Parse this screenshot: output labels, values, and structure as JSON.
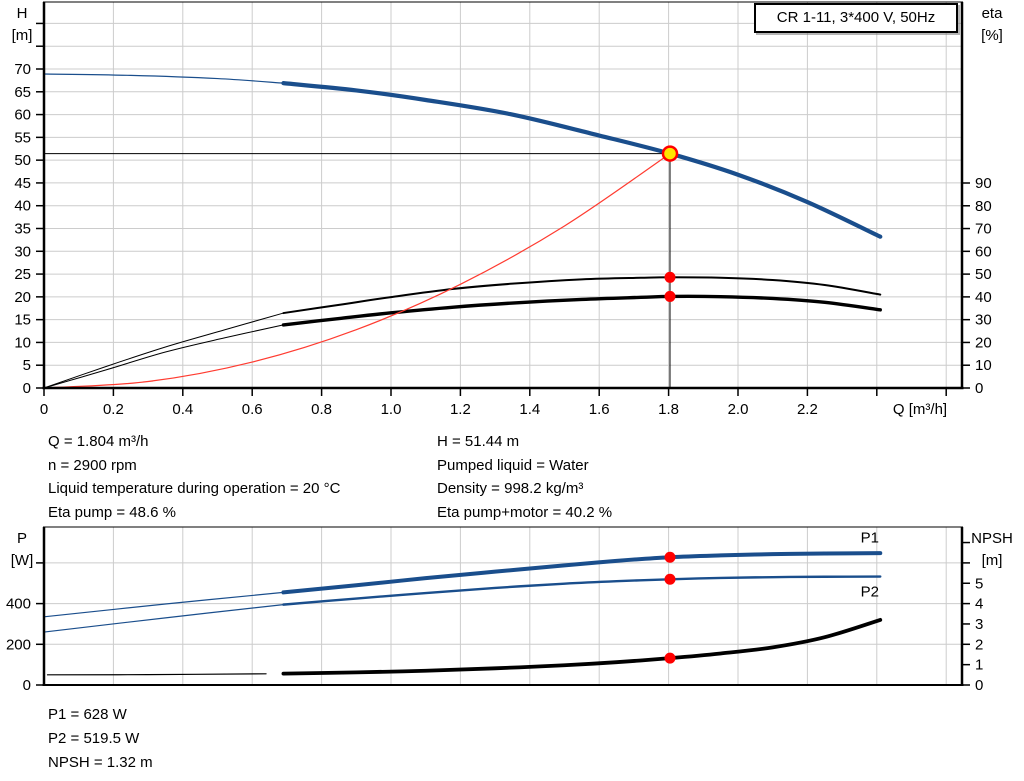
{
  "title_box": "CR 1-11, 3*400 V, 50Hz",
  "colors": {
    "curve_blue": "#1a4e8c",
    "curve_black": "#000000",
    "curve_red": "#ff3b30",
    "marker_red": "#ff0000",
    "duty_fill": "#ffe600",
    "grid": "#cccccc",
    "axis": "#000000"
  },
  "annotations": {
    "mid_left": [
      "Q = 1.804 m³/h",
      "n = 2900 rpm",
      "Liquid temperature during operation = 20 °C",
      "Eta pump = 48.6 %"
    ],
    "mid_right": [
      "H = 51.44 m",
      "Pumped liquid = Water",
      "Density = 998.2 kg/m³",
      "Eta pump+motor = 40.2 %"
    ],
    "bottom": [
      "P1 = 628 W",
      "P2 = 519.5 W",
      "NPSH = 1.32 m"
    ]
  },
  "chart_data": [
    {
      "name": "qh-eta-chart",
      "type": "line",
      "title": "CR 1-11, 3*400 V, 50Hz",
      "x_axis": {
        "label": "Q [m³/h]",
        "min": 0,
        "max": 2.65,
        "ticks": [
          [
            0,
            "0"
          ],
          [
            0.2,
            "0.2"
          ],
          [
            0.4,
            "0.4"
          ],
          [
            0.6,
            "0.6"
          ],
          [
            0.8,
            "0.8"
          ],
          [
            1.0,
            "1.0"
          ],
          [
            1.2,
            "1.2"
          ],
          [
            1.4,
            "1.4"
          ],
          [
            1.6,
            "1.6"
          ],
          [
            1.8,
            "1.8"
          ],
          [
            2.0,
            "2.0"
          ],
          [
            2.2,
            "2.2"
          ],
          [
            2.4,
            null
          ],
          [
            2.6,
            null
          ]
        ]
      },
      "y_left": {
        "title": [
          "H",
          "[m]"
        ],
        "min": 0,
        "max": 84.5,
        "ticks": [
          [
            0,
            "0"
          ],
          [
            5,
            "5"
          ],
          [
            10,
            "10"
          ],
          [
            15,
            "15"
          ],
          [
            20,
            "20"
          ],
          [
            25,
            "25"
          ],
          [
            30,
            "30"
          ],
          [
            35,
            "35"
          ],
          [
            40,
            "40"
          ],
          [
            45,
            "45"
          ],
          [
            50,
            "50"
          ],
          [
            55,
            "55"
          ],
          [
            60,
            "60"
          ],
          [
            65,
            "65"
          ],
          [
            70,
            "70"
          ],
          [
            75,
            null
          ],
          [
            80,
            null
          ]
        ]
      },
      "y_right": {
        "title": [
          "eta",
          "[%]"
        ],
        "min": 0,
        "max": 90,
        "ticks": [
          [
            0,
            "0"
          ],
          [
            10,
            "10"
          ],
          [
            20,
            "20"
          ],
          [
            30,
            "30"
          ],
          [
            40,
            "40"
          ],
          [
            50,
            "50"
          ],
          [
            60,
            "60"
          ],
          [
            70,
            "70"
          ],
          [
            80,
            "80"
          ],
          [
            90,
            "90"
          ]
        ]
      },
      "ref_lines": [
        {
          "type": "h",
          "name": "duty-head-line",
          "v": 51.44,
          "q1": 0,
          "q2": 1.804
        },
        {
          "type": "v",
          "name": "duty-flow-line",
          "q": 1.804,
          "v1": 51.44
        }
      ],
      "series": [
        {
          "name": "qh-curve-low-flow",
          "axis": "left",
          "color": "curve_blue",
          "width": 1.2,
          "points": [
            [
              0,
              68.9
            ],
            [
              0.25,
              68.6
            ],
            [
              0.5,
              67.9
            ],
            [
              0.69,
              66.9
            ]
          ]
        },
        {
          "name": "qh-curve",
          "axis": "left",
          "color": "curve_blue",
          "width": 4.2,
          "points": [
            [
              0.69,
              66.9
            ],
            [
              0.9,
              65.3
            ],
            [
              1.1,
              63.2
            ],
            [
              1.343,
              60.1
            ],
            [
              1.6,
              55.4
            ],
            [
              1.804,
              51.44
            ],
            [
              2.0,
              46.8
            ],
            [
              2.2,
              40.8
            ],
            [
              2.41,
              33.2
            ]
          ]
        },
        {
          "name": "eta-pump-curve-low-flow",
          "axis": "right",
          "color": "curve_black",
          "width": 1,
          "points": [
            [
              0,
              0
            ],
            [
              0.18,
              9.5
            ],
            [
              0.35,
              18
            ],
            [
              0.52,
              25.5
            ],
            [
              0.69,
              32.9
            ]
          ]
        },
        {
          "name": "eta-pump-curve",
          "axis": "right",
          "color": "curve_black",
          "width": 2,
          "points": [
            [
              0.69,
              32.9
            ],
            [
              0.85,
              36.5
            ],
            [
              1.0,
              39.9
            ],
            [
              1.18,
              43.5
            ],
            [
              1.35,
              45.8
            ],
            [
              1.55,
              47.7
            ],
            [
              1.72,
              48.4
            ],
            [
              1.804,
              48.6
            ],
            [
              1.95,
              48.4
            ],
            [
              2.1,
              47.4
            ],
            [
              2.25,
              45.2
            ],
            [
              2.41,
              41.0
            ]
          ]
        },
        {
          "name": "eta-pump-motor-curve-low-flow",
          "axis": "right",
          "color": "curve_black",
          "width": 1,
          "points": [
            [
              0,
              0
            ],
            [
              0.18,
              8
            ],
            [
              0.35,
              15.8
            ],
            [
              0.52,
              22
            ],
            [
              0.69,
              27.7
            ]
          ]
        },
        {
          "name": "eta-pump-motor-curve",
          "axis": "right",
          "color": "curve_black",
          "width": 3.4,
          "points": [
            [
              0.69,
              27.7
            ],
            [
              0.85,
              30.5
            ],
            [
              1.0,
              33.0
            ],
            [
              1.18,
              35.5
            ],
            [
              1.35,
              37.3
            ],
            [
              1.55,
              38.9
            ],
            [
              1.72,
              39.8
            ],
            [
              1.804,
              40.2
            ],
            [
              1.95,
              40.1
            ],
            [
              2.1,
              39.3
            ],
            [
              2.25,
              37.6
            ],
            [
              2.41,
              34.3
            ]
          ]
        },
        {
          "name": "system-curve",
          "axis": "left",
          "color": "curve_red",
          "width": 1.2,
          "points": [
            [
              0,
              0
            ],
            [
              0.3,
              1.42
            ],
            [
              0.6,
              5.69
            ],
            [
              0.9,
              12.8
            ],
            [
              1.2,
              22.76
            ],
            [
              1.5,
              35.56
            ],
            [
              1.804,
              51.44
            ]
          ]
        }
      ],
      "markers": [
        {
          "name": "duty-point-marker",
          "style": "duty",
          "axis": "left",
          "q": 1.804,
          "v": 51.44
        },
        {
          "name": "eta-pump-point",
          "style": "point",
          "axis": "right",
          "q": 1.804,
          "v": 48.6
        },
        {
          "name": "eta-pump-motor-point",
          "style": "point",
          "axis": "right",
          "q": 1.804,
          "v": 40.2
        }
      ]
    },
    {
      "name": "power-npsh-chart",
      "type": "line",
      "x_axis": {
        "label": "",
        "min": 0,
        "max": 2.65,
        "ticks": [
          [
            0.2,
            null
          ],
          [
            0.4,
            null
          ],
          [
            0.6,
            null
          ],
          [
            0.8,
            null
          ],
          [
            1.0,
            null
          ],
          [
            1.2,
            null
          ],
          [
            1.4,
            null
          ],
          [
            1.6,
            null
          ],
          [
            1.8,
            null
          ],
          [
            2.0,
            null
          ],
          [
            2.2,
            null
          ],
          [
            2.4,
            null
          ],
          [
            2.6,
            null
          ]
        ]
      },
      "y_left": {
        "title": [
          "P",
          "[W]"
        ],
        "min": 0,
        "max": 780,
        "ticks": [
          [
            0,
            "0"
          ],
          [
            200,
            "200"
          ],
          [
            400,
            "400"
          ],
          [
            600,
            null
          ]
        ]
      },
      "y_right": {
        "title": [
          "NPSH",
          "[m]"
        ],
        "min": 0,
        "max": 7.8,
        "ticks": [
          [
            0,
            "0"
          ],
          [
            1,
            "1"
          ],
          [
            2,
            "2"
          ],
          [
            3,
            "3"
          ],
          [
            4,
            "4"
          ],
          [
            5,
            "5"
          ],
          [
            6,
            null
          ],
          [
            7,
            null
          ]
        ]
      },
      "ref_lines": [],
      "series": [
        {
          "name": "p1-curve-low-flow",
          "axis": "left",
          "color": "curve_blue",
          "width": 1.2,
          "points": [
            [
              0,
              335
            ],
            [
              0.35,
              398
            ],
            [
              0.69,
              455
            ]
          ]
        },
        {
          "name": "p1-curve",
          "axis": "left",
          "color": "curve_blue",
          "width": 4,
          "points": [
            [
              0.69,
              455
            ],
            [
              0.9,
              490
            ],
            [
              1.1,
              525
            ],
            [
              1.3,
              557
            ],
            [
              1.5,
              588
            ],
            [
              1.65,
              610
            ],
            [
              1.804,
              628
            ],
            [
              1.95,
              637
            ],
            [
              2.1,
              643
            ],
            [
              2.25,
              646
            ],
            [
              2.41,
              648
            ]
          ]
        },
        {
          "name": "p2-curve-low-flow",
          "axis": "left",
          "color": "curve_blue",
          "width": 1.2,
          "points": [
            [
              0,
              260
            ],
            [
              0.35,
              330
            ],
            [
              0.69,
              395
            ]
          ]
        },
        {
          "name": "p2-curve",
          "axis": "left",
          "color": "curve_blue",
          "width": 2.4,
          "points": [
            [
              0.69,
              395
            ],
            [
              0.9,
              425
            ],
            [
              1.1,
              452
            ],
            [
              1.3,
              477
            ],
            [
              1.5,
              498
            ],
            [
              1.65,
              510
            ],
            [
              1.804,
              519.5
            ],
            [
              1.95,
              526
            ],
            [
              2.1,
              530
            ],
            [
              2.25,
              532
            ],
            [
              2.41,
              533
            ]
          ]
        },
        {
          "name": "npsh-curve-low-flow",
          "axis": "right",
          "color": "curve_black",
          "width": 1.2,
          "points": [
            [
              0.01,
              0.5
            ],
            [
              0.3,
              0.51
            ],
            [
              0.64,
              0.55
            ]
          ]
        },
        {
          "name": "npsh-curve",
          "axis": "right",
          "color": "curve_black",
          "width": 3.8,
          "points": [
            [
              0.69,
              0.56
            ],
            [
              0.9,
              0.62
            ],
            [
              1.1,
              0.7
            ],
            [
              1.3,
              0.82
            ],
            [
              1.5,
              0.97
            ],
            [
              1.65,
              1.12
            ],
            [
              1.804,
              1.32
            ],
            [
              1.95,
              1.55
            ],
            [
              2.1,
              1.85
            ],
            [
              2.25,
              2.35
            ],
            [
              2.41,
              3.2
            ]
          ]
        }
      ],
      "inline_labels": [
        {
          "name": "p1-curve-label",
          "text": "P1",
          "axis": "left",
          "q": 2.38,
          "v": 700
        },
        {
          "name": "p2-curve-label",
          "text": "P2",
          "axis": "left",
          "q": 2.38,
          "v": 435
        }
      ],
      "markers": [
        {
          "name": "p1-point",
          "style": "point",
          "axis": "left",
          "q": 1.804,
          "v": 628
        },
        {
          "name": "p2-point",
          "style": "point",
          "axis": "left",
          "q": 1.804,
          "v": 519.5
        },
        {
          "name": "npsh-point",
          "style": "point",
          "axis": "right",
          "q": 1.804,
          "v": 1.32
        }
      ]
    }
  ]
}
